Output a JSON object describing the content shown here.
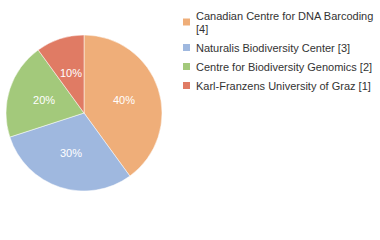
{
  "chart_data": {
    "type": "pie",
    "categories": [
      "Canadian Centre for DNA Barcoding [4]",
      "Naturalis Biodiversity Center [3]",
      "Centre for Biodiversity Genomics [2]",
      "Karl-Franzens University of Graz [1]"
    ],
    "values": [
      40,
      30,
      20,
      10
    ],
    "value_labels": [
      "40%",
      "30%",
      "20%",
      "10%"
    ],
    "colors": [
      "#efae79",
      "#9fb8df",
      "#a3c97b",
      "#e07b64"
    ],
    "data_labels": true,
    "legend": "right"
  }
}
